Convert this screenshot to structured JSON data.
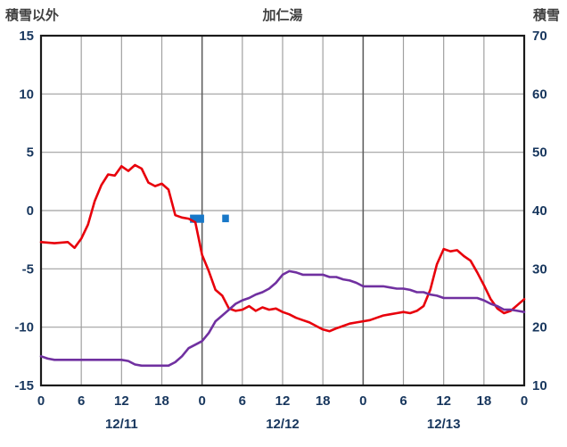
{
  "header": {
    "left_axis_title": "積雪以外",
    "title": "加仁湯",
    "right_axis_title": "積雪"
  },
  "colors": {
    "temperature": "#e8000b",
    "snow_depth": "#7030a0",
    "snowfall_bar": "#1878c8",
    "grid": "#a0a0a0",
    "grid_major": "#606060",
    "border": "#1a1a1a",
    "axis_text": "#17365d",
    "title_text": "#3f3f3f"
  },
  "chart_data": {
    "type": "line",
    "title": "加仁湯",
    "left_axis": {
      "label": "積雪以外",
      "min": -15,
      "max": 15,
      "ticks": [
        15,
        10,
        5,
        0,
        -5,
        -10,
        -15
      ]
    },
    "right_axis": {
      "label": "積雪",
      "min": 10,
      "max": 70,
      "ticks": [
        70,
        60,
        50,
        40,
        30,
        20,
        10
      ]
    },
    "x_axis": {
      "hours_total": 72,
      "tick_hours": [
        0,
        6,
        12,
        18,
        24,
        30,
        36,
        42,
        48,
        54,
        60,
        66,
        72
      ],
      "tick_labels": [
        "0",
        "6",
        "12",
        "18",
        "0",
        "6",
        "12",
        "18",
        "0",
        "6",
        "12",
        "18",
        "0"
      ],
      "date_labels": [
        "12/11",
        "12/12",
        "12/13"
      ],
      "date_center_hours": [
        12,
        36,
        60
      ]
    },
    "series": [
      {
        "name": "temperature",
        "axis": "left",
        "values": [
          -2.7,
          -2.75,
          -2.8,
          -2.75,
          -2.7,
          -3.2,
          -2.4,
          -1.2,
          0.8,
          2.2,
          3.1,
          3.0,
          3.8,
          3.4,
          3.9,
          3.6,
          2.4,
          2.1,
          2.3,
          1.8,
          -0.4,
          -0.6,
          -0.7,
          -1.0,
          -3.8,
          -5.2,
          -6.8,
          -7.3,
          -8.4,
          -8.6,
          -8.5,
          -8.2,
          -8.6,
          -8.3,
          -8.5,
          -8.4,
          -8.7,
          -8.9,
          -9.2,
          -9.4,
          -9.6,
          -9.9,
          -10.2,
          -10.35,
          -10.1,
          -9.9,
          -9.7,
          -9.6,
          -9.5,
          -9.4,
          -9.2,
          -9.0,
          -8.9,
          -8.8,
          -8.7,
          -8.8,
          -8.6,
          -8.2,
          -6.8,
          -4.6,
          -3.3,
          -3.5,
          -3.4,
          -3.9,
          -4.3,
          -5.3,
          -6.4,
          -7.6,
          -8.4,
          -8.8,
          -8.6,
          -8.1,
          -7.6
        ]
      },
      {
        "name": "snow_depth",
        "axis": "right",
        "values": [
          15.0,
          14.6,
          14.4,
          14.4,
          14.4,
          14.4,
          14.4,
          14.4,
          14.4,
          14.4,
          14.4,
          14.4,
          14.4,
          14.2,
          13.6,
          13.4,
          13.4,
          13.4,
          13.4,
          13.4,
          14.0,
          15.0,
          16.4,
          17.0,
          17.6,
          19.0,
          21.0,
          22.0,
          23.0,
          24.0,
          24.6,
          25.0,
          25.6,
          26.0,
          26.6,
          27.6,
          29.0,
          29.6,
          29.4,
          29.0,
          29.0,
          29.0,
          29.0,
          28.6,
          28.6,
          28.2,
          28.0,
          27.6,
          27.0,
          27.0,
          27.0,
          27.0,
          26.8,
          26.6,
          26.6,
          26.4,
          26.0,
          26.0,
          25.6,
          25.4,
          25.0,
          25.0,
          25.0,
          25.0,
          25.0,
          25.0,
          24.6,
          24.0,
          23.6,
          23.0,
          23.0,
          22.8,
          22.6
        ]
      }
    ],
    "snowfall_bars": [
      {
        "from_hour": 22.2,
        "to_hour": 24.3,
        "top": -0.35,
        "bottom": -1.05
      },
      {
        "from_hour": 27.0,
        "to_hour": 28.0,
        "top": -0.35,
        "bottom": -1.0
      }
    ]
  }
}
